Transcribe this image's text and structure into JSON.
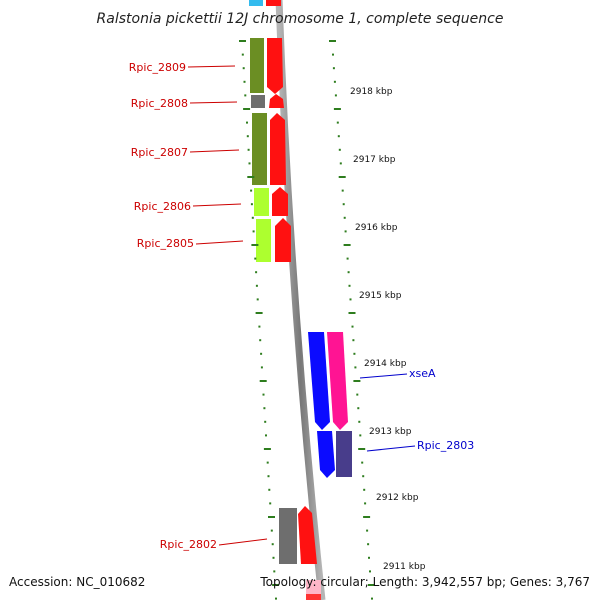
{
  "title": "Ralstonia pickettii 12J chromosome 1, complete sequence",
  "footer": {
    "accession": "Accession: NC_010682",
    "topology": "Topology: circular; Length: 3,942,557 bp; Genes: 3,767"
  },
  "colors": {
    "label_red": "#cc0000",
    "label_blue": "#0000cc",
    "tick_green": "#2e7d1e",
    "backbone": "#8a8a8a",
    "forward_arrow": "#ff1111",
    "reverse_arrow": "#0b0bff",
    "pink_arrow": "#ff1493",
    "olive": "#6b8e23",
    "lime": "#adff2f",
    "gray": "#6e6e6e",
    "slate": "#483d8b",
    "cyan": "#33bbee"
  },
  "scale": {
    "labels": [
      "2918 kbp",
      "2917 kbp",
      "2916 kbp",
      "2915 kbp",
      "2914 kbp",
      "2913 kbp",
      "2912 kbp",
      "2911 kbp"
    ]
  },
  "genes_left": [
    {
      "name": "Rpic_2809"
    },
    {
      "name": "Rpic_2808"
    },
    {
      "name": "Rpic_2807"
    },
    {
      "name": "Rpic_2806"
    },
    {
      "name": "Rpic_2805"
    },
    {
      "name": "Rpic_2802"
    }
  ],
  "genes_right": [
    {
      "name": "xseA"
    },
    {
      "name": "Rpic_2803"
    }
  ]
}
